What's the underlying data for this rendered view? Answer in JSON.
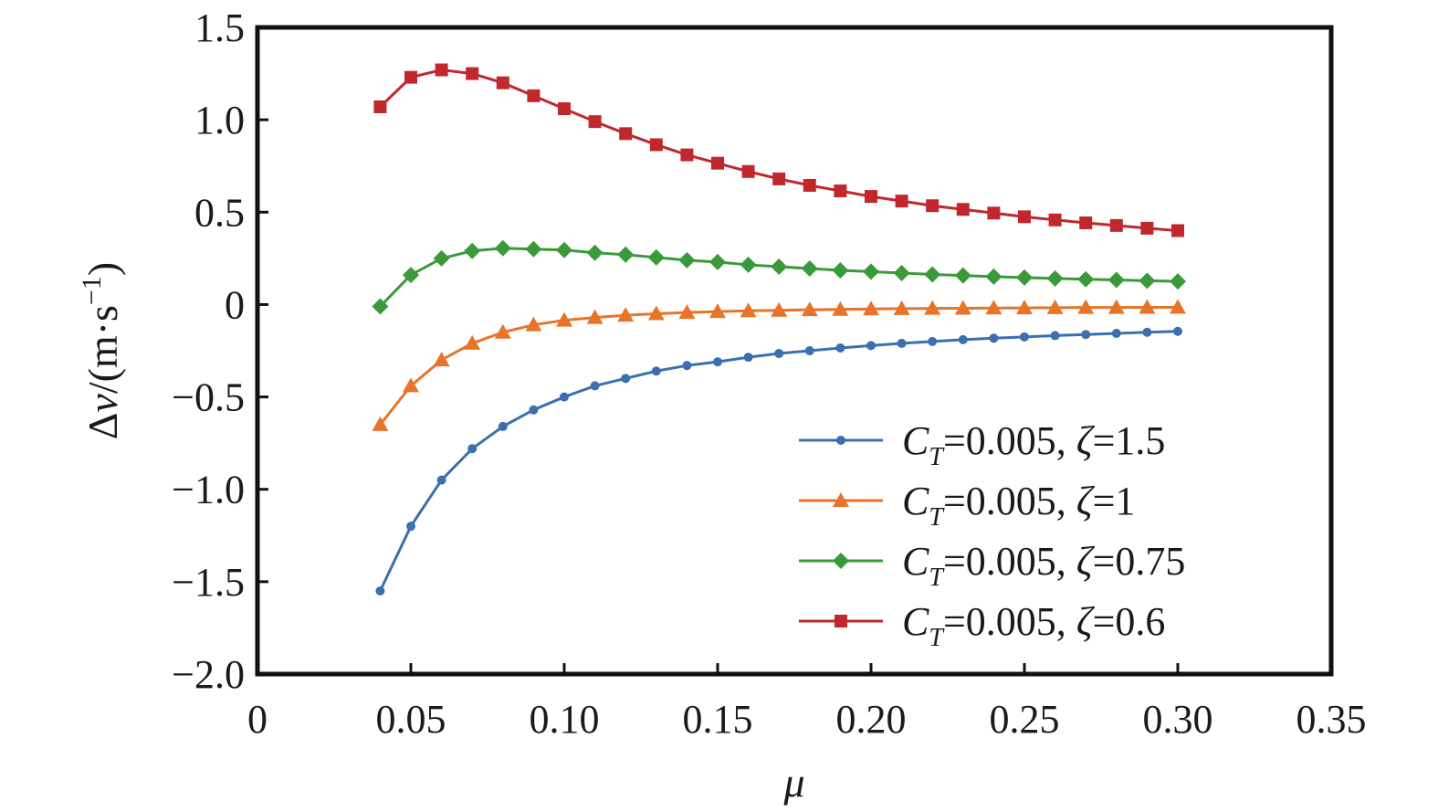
{
  "chart_data": {
    "type": "line",
    "xlabel": "μ",
    "ylabel_parts": {
      "prefix": "Δ",
      "var": "v",
      "unit": "/(m·s",
      "sup": "−1",
      "close": ")"
    },
    "xlim": [
      0,
      0.35
    ],
    "ylim": [
      -2.0,
      1.5
    ],
    "xticks": [
      0,
      0.05,
      0.1,
      0.15,
      0.2,
      0.25,
      0.3,
      0.35
    ],
    "xtick_labels": [
      "0",
      "0.05",
      "0.10",
      "0.15",
      "0.20",
      "0.25",
      "0.30",
      "0.35"
    ],
    "yticks": [
      1.5,
      1.0,
      0.5,
      0,
      -0.5,
      -1.0,
      -1.5,
      -2.0
    ],
    "ytick_labels": [
      "1.5",
      "1.0",
      "0.5",
      "0",
      "−0.5",
      "−1.0",
      "−1.5",
      "−2.0"
    ],
    "grid": false,
    "legend_position": "lower-right",
    "x": [
      0.04,
      0.05,
      0.06,
      0.07,
      0.08,
      0.09,
      0.1,
      0.11,
      0.12,
      0.13,
      0.14,
      0.15,
      0.16,
      0.17,
      0.18,
      0.19,
      0.2,
      0.21,
      0.22,
      0.23,
      0.24,
      0.25,
      0.26,
      0.27,
      0.28,
      0.29,
      0.3
    ],
    "series": [
      {
        "legend": {
          "c": "C",
          "sub": "T",
          "rest": "=0.005, ",
          "zeta": "ζ",
          "val": "=1.5"
        },
        "color": "#3b6fb0",
        "marker": "circle",
        "values": [
          -1.55,
          -1.2,
          -0.95,
          -0.78,
          -0.66,
          -0.57,
          -0.5,
          -0.44,
          -0.4,
          -0.36,
          -0.33,
          -0.31,
          -0.285,
          -0.265,
          -0.25,
          -0.235,
          -0.222,
          -0.21,
          -0.2,
          -0.19,
          -0.182,
          -0.175,
          -0.168,
          -0.162,
          -0.156,
          -0.15,
          -0.145
        ]
      },
      {
        "legend": {
          "c": "C",
          "sub": "T",
          "rest": "=0.005, ",
          "zeta": "ζ",
          "val": "=1"
        },
        "color": "#e8742a",
        "marker": "triangle",
        "values": [
          -0.65,
          -0.44,
          -0.3,
          -0.21,
          -0.15,
          -0.11,
          -0.085,
          -0.07,
          -0.058,
          -0.05,
          -0.043,
          -0.038,
          -0.034,
          -0.031,
          -0.028,
          -0.026,
          -0.024,
          -0.022,
          -0.021,
          -0.02,
          -0.019,
          -0.018,
          -0.017,
          -0.016,
          -0.016,
          -0.015,
          -0.015
        ]
      },
      {
        "legend": {
          "c": "C",
          "sub": "T",
          "rest": "=0.005, ",
          "zeta": "ζ",
          "val": "=0.75"
        },
        "color": "#3a9a3a",
        "marker": "diamond",
        "values": [
          -0.01,
          0.16,
          0.25,
          0.29,
          0.305,
          0.3,
          0.295,
          0.28,
          0.27,
          0.255,
          0.24,
          0.23,
          0.215,
          0.205,
          0.195,
          0.185,
          0.178,
          0.17,
          0.163,
          0.157,
          0.151,
          0.146,
          0.141,
          0.137,
          0.133,
          0.129,
          0.125
        ]
      },
      {
        "legend": {
          "c": "C",
          "sub": "T",
          "rest": "=0.005, ",
          "zeta": "ζ",
          "val": "=0.6"
        },
        "color": "#c0282d",
        "marker": "square",
        "values": [
          1.07,
          1.23,
          1.27,
          1.25,
          1.2,
          1.13,
          1.06,
          0.99,
          0.925,
          0.865,
          0.81,
          0.765,
          0.72,
          0.68,
          0.645,
          0.615,
          0.585,
          0.56,
          0.535,
          0.515,
          0.495,
          0.475,
          0.458,
          0.442,
          0.428,
          0.413,
          0.4
        ]
      }
    ]
  }
}
